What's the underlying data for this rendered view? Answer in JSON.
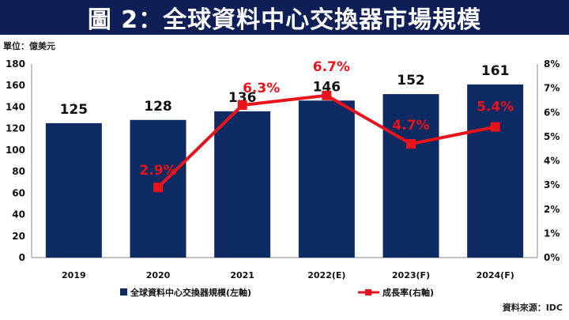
{
  "header": {
    "title": "圖 2：全球資料中心交換器市場規模"
  },
  "unit": "單位：億美元",
  "source": "資料來源：IDC",
  "colors": {
    "bar": "#0e2a63",
    "line": "#e8141b",
    "header_bg": "#0e1f57"
  },
  "chart_data": {
    "type": "bar",
    "categories": [
      "2019",
      "2020",
      "2021",
      "2022(E)",
      "2023(F)",
      "2024(F)"
    ],
    "series": [
      {
        "name": "全球資料中心交換器規模(左軸)",
        "type": "bar",
        "axis": "left",
        "values": [
          125,
          128,
          136,
          146,
          152,
          161
        ],
        "labels": [
          "125",
          "128",
          "136",
          "146",
          "152",
          "161"
        ]
      },
      {
        "name": "成長率(右軸)",
        "type": "line",
        "axis": "right",
        "values": [
          null,
          2.9,
          6.3,
          6.7,
          4.7,
          5.4
        ],
        "labels": [
          "",
          "2.9%",
          "6.3%",
          "6.7%",
          "4.7%",
          "5.4%"
        ]
      }
    ],
    "left_axis": {
      "ylim": [
        0,
        180
      ],
      "ticks": [
        "0",
        "20",
        "40",
        "60",
        "80",
        "100",
        "120",
        "140",
        "160",
        "180"
      ]
    },
    "right_axis": {
      "ylim": [
        0,
        8
      ],
      "ticks": [
        "0%",
        "1%",
        "2%",
        "3%",
        "4%",
        "5%",
        "6%",
        "7%",
        "8%"
      ]
    },
    "grid": false,
    "legend_position": "bottom"
  }
}
